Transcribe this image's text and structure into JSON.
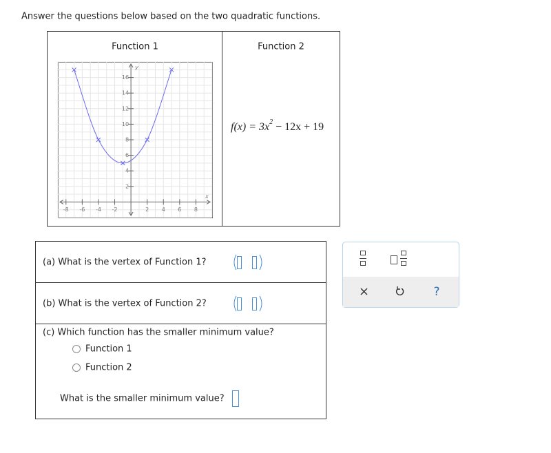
{
  "instruction": "Answer the questions below based on the two quadratic functions.",
  "table": {
    "headers": [
      "Function 1",
      "Function 2"
    ],
    "graph": {
      "xlim": [
        -9,
        10
      ],
      "ylim": [
        -2,
        18
      ],
      "xticks": [
        -8,
        -6,
        -4,
        -2,
        2,
        4,
        6,
        8
      ],
      "yticks": [
        2,
        4,
        6,
        8,
        10,
        12,
        14,
        16
      ],
      "x_label": "x",
      "y_label": "y",
      "color": "#6b6bf0",
      "points_x": [
        -7,
        -4,
        -1,
        2,
        5
      ],
      "points_y": [
        17,
        8,
        5,
        8,
        17
      ]
    },
    "formula": [
      "f(x) = 3x",
      "2",
      " − 12x + 19"
    ]
  },
  "questions": {
    "a": "(a) What is the vertex of Function 1?",
    "b": "(b) What is the vertex of Function 2?",
    "c": "(c) Which function has the smaller minimum value?",
    "options": [
      "Function 1",
      "Function 2"
    ],
    "d": "What is the smaller minimum value?"
  },
  "toolbar": {
    "help": "?"
  }
}
